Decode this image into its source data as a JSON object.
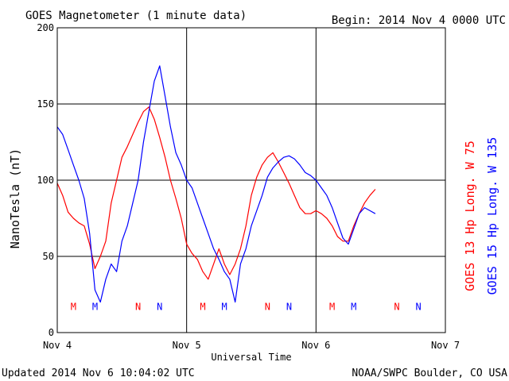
{
  "chart_data": {
    "type": "line",
    "title": "GOES Magnetometer (1 minute data)",
    "begin_label": "Begin:  2014 Nov 4 0000 UTC",
    "xlabel": "Universal Time",
    "ylabel": "NanoTesla (nT)",
    "xlim": [
      0,
      72
    ],
    "ylim": [
      0,
      200
    ],
    "x_ticks": [
      {
        "x": 0,
        "label": "Nov 4"
      },
      {
        "x": 24,
        "label": "Nov 5"
      },
      {
        "x": 48,
        "label": "Nov 6"
      },
      {
        "x": 72,
        "label": "Nov 7"
      }
    ],
    "y_ticks": [
      0,
      50,
      100,
      150,
      200
    ],
    "grid": true,
    "x_unit": "hours since 2014 Nov 4 0000 UTC",
    "series": [
      {
        "name": "GOES 13 Hp  Long. W 75",
        "color": "#ff0000",
        "x": [
          0,
          1,
          2,
          3,
          4,
          5,
          6,
          7,
          8,
          9,
          10,
          11,
          12,
          13,
          14,
          15,
          16,
          17,
          18,
          19,
          20,
          21,
          22,
          23,
          24,
          25,
          26,
          27,
          28,
          29,
          30,
          31,
          32,
          33,
          34,
          35,
          36,
          37,
          38,
          39,
          40,
          41,
          42,
          43,
          44,
          45,
          46,
          47,
          48,
          49,
          50,
          51,
          52,
          53,
          54,
          55,
          56,
          57,
          58,
          59
        ],
        "y": [
          98,
          90,
          79,
          75,
          72,
          70,
          58,
          42,
          50,
          60,
          85,
          100,
          115,
          122,
          130,
          138,
          145,
          148,
          140,
          128,
          115,
          100,
          88,
          75,
          58,
          52,
          48,
          40,
          35,
          45,
          55,
          45,
          38,
          45,
          55,
          70,
          90,
          102,
          110,
          115,
          118,
          112,
          105,
          98,
          90,
          82,
          78,
          78,
          80,
          78,
          75,
          70,
          63,
          60,
          60,
          70,
          78,
          85,
          90,
          94
        ]
      },
      {
        "name": "GOES 15 Hp  Long. W 135",
        "color": "#0000ff",
        "x": [
          0,
          1,
          2,
          3,
          4,
          5,
          6,
          7,
          8,
          9,
          10,
          11,
          12,
          13,
          14,
          15,
          16,
          17,
          18,
          19,
          20,
          21,
          22,
          23,
          24,
          25,
          26,
          27,
          28,
          29,
          30,
          31,
          32,
          33,
          34,
          35,
          36,
          37,
          38,
          39,
          40,
          41,
          42,
          43,
          44,
          45,
          46,
          47,
          48,
          49,
          50,
          51,
          52,
          53,
          54,
          55,
          56,
          57,
          58,
          59
        ],
        "y": [
          135,
          130,
          120,
          110,
          100,
          88,
          65,
          28,
          20,
          35,
          45,
          40,
          60,
          70,
          85,
          100,
          125,
          145,
          165,
          175,
          155,
          135,
          118,
          110,
          100,
          95,
          85,
          75,
          65,
          55,
          48,
          40,
          35,
          20,
          45,
          55,
          70,
          80,
          90,
          102,
          108,
          112,
          115,
          116,
          114,
          110,
          105,
          103,
          100,
          95,
          90,
          82,
          72,
          62,
          58,
          68,
          78,
          82,
          80,
          78
        ]
      }
    ],
    "event_marks": [
      {
        "label": "M",
        "x": 3.0,
        "series": 0
      },
      {
        "label": "M",
        "x": 7.0,
        "series": 1
      },
      {
        "label": "N",
        "x": 15.0,
        "series": 0
      },
      {
        "label": "N",
        "x": 19.0,
        "series": 1
      },
      {
        "label": "M",
        "x": 27.0,
        "series": 0
      },
      {
        "label": "M",
        "x": 31.0,
        "series": 1
      },
      {
        "label": "N",
        "x": 39.0,
        "series": 0
      },
      {
        "label": "N",
        "x": 43.0,
        "series": 1
      },
      {
        "label": "M",
        "x": 51.0,
        "series": 0
      },
      {
        "label": "M",
        "x": 55.0,
        "series": 1
      },
      {
        "label": "N",
        "x": 63.0,
        "series": 0
      },
      {
        "label": "N",
        "x": 67.0,
        "series": 1
      }
    ],
    "event_marks_y": 17
  },
  "footer": {
    "updated": "Updated 2014 Nov  6 10:04:02 UTC",
    "credit": "NOAA/SWPC Boulder, CO USA"
  }
}
